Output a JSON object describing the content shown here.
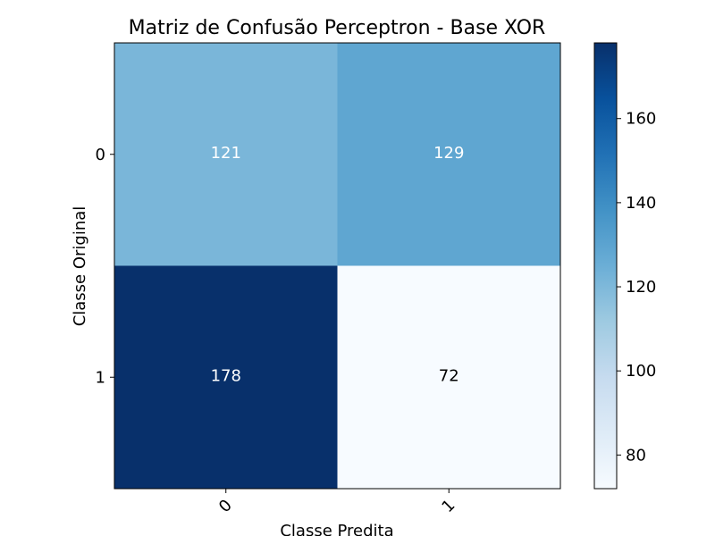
{
  "chart_data": {
    "type": "heatmap",
    "title": "Matriz de Confusão Perceptron - Base XOR",
    "xlabel": "Classe Predita",
    "ylabel": "Classe Original",
    "x_categories": [
      "0",
      "1"
    ],
    "y_categories": [
      "0",
      "1"
    ],
    "values": [
      [
        121,
        129
      ],
      [
        178,
        72
      ]
    ],
    "cell_labels": [
      [
        "121",
        "129"
      ],
      [
        "178",
        "72"
      ]
    ],
    "colormap": "Blues",
    "colorbar": {
      "range": [
        72,
        178
      ],
      "ticks": [
        80,
        100,
        120,
        140,
        160
      ],
      "tick_labels": [
        "80",
        "100",
        "120",
        "140",
        "160"
      ]
    },
    "grid": false,
    "x_tick_rotation_deg": 45
  }
}
